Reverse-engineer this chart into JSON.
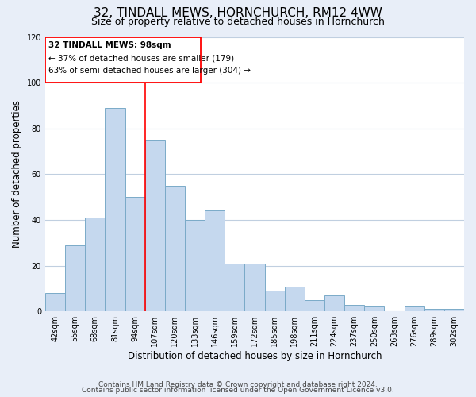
{
  "title": "32, TINDALL MEWS, HORNCHURCH, RM12 4WW",
  "subtitle": "Size of property relative to detached houses in Hornchurch",
  "xlabel": "Distribution of detached houses by size in Hornchurch",
  "ylabel": "Number of detached properties",
  "bar_labels": [
    "42sqm",
    "55sqm",
    "68sqm",
    "81sqm",
    "94sqm",
    "107sqm",
    "120sqm",
    "133sqm",
    "146sqm",
    "159sqm",
    "172sqm",
    "185sqm",
    "198sqm",
    "211sqm",
    "224sqm",
    "237sqm",
    "250sqm",
    "263sqm",
    "276sqm",
    "289sqm",
    "302sqm"
  ],
  "bar_heights": [
    8,
    29,
    41,
    89,
    50,
    75,
    55,
    40,
    44,
    21,
    21,
    9,
    11,
    5,
    7,
    3,
    2,
    0,
    2,
    1,
    1
  ],
  "bar_color": "#c5d8ee",
  "bar_edge_color": "#7aaac8",
  "ylim": [
    0,
    120
  ],
  "yticks": [
    0,
    20,
    40,
    60,
    80,
    100,
    120
  ],
  "property_label": "32 TINDALL MEWS: 98sqm",
  "annotation_line1": "← 37% of detached houses are smaller (179)",
  "annotation_line2": "63% of semi-detached houses are larger (304) →",
  "vline_x_pos": 4.5,
  "footer_line1": "Contains HM Land Registry data © Crown copyright and database right 2024.",
  "footer_line2": "Contains public sector information licensed under the Open Government Licence v3.0.",
  "background_color": "#e8eef8",
  "plot_background_color": "#ffffff",
  "grid_color": "#c0cfe0",
  "title_fontsize": 11,
  "subtitle_fontsize": 9,
  "axis_label_fontsize": 8.5,
  "tick_fontsize": 7,
  "annotation_fontsize": 7.5,
  "footer_fontsize": 6.5
}
